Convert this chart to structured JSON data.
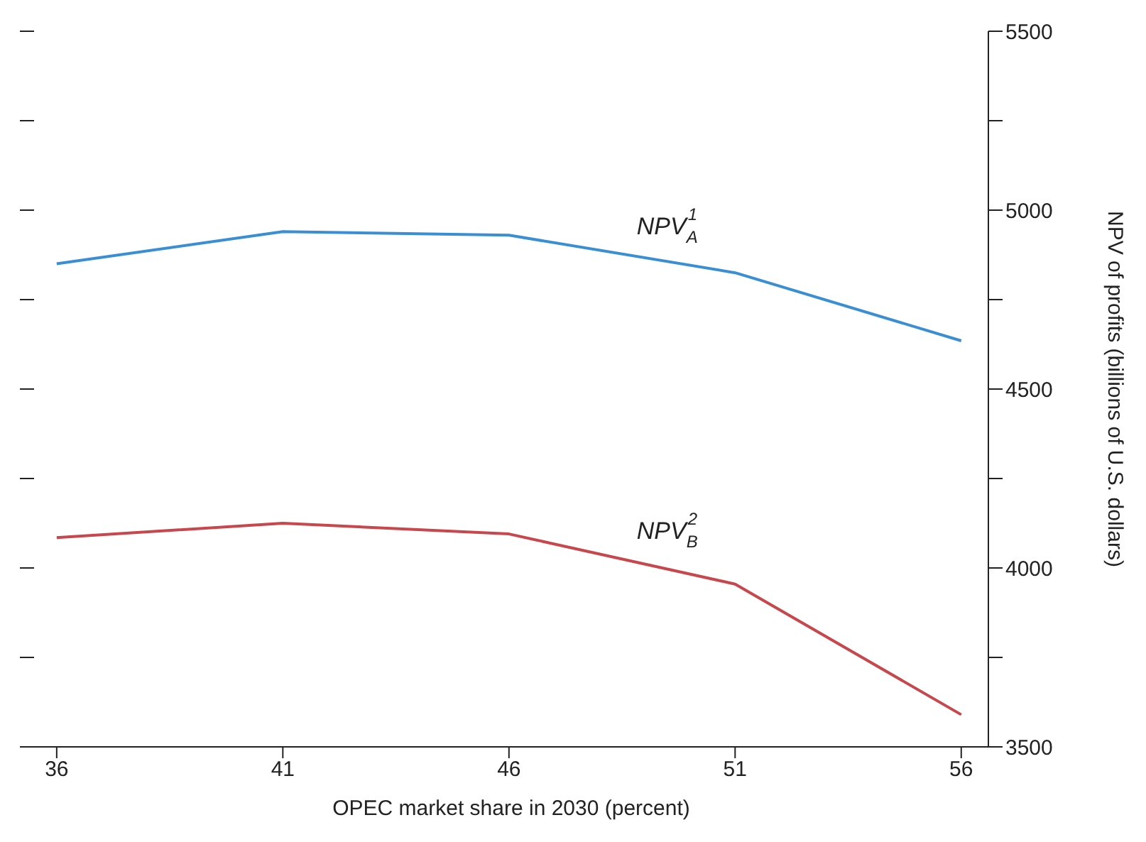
{
  "chart_data": {
    "type": "line",
    "xlabel": "OPEC market share in 2030 (percent)",
    "ylabel": "NPV of profits (billions of U.S. dollars)",
    "x": [
      36,
      41,
      46,
      51,
      56
    ],
    "series": [
      {
        "color": "#3a8fd4",
        "values": [
          4850,
          4940,
          4930,
          4825,
          4635
        ]
      },
      {
        "color": "#c8474d",
        "values": [
          4085,
          4125,
          4095,
          3955,
          3590
        ]
      }
    ],
    "xlim": [
      35.5,
      56.6
    ],
    "xticks": [
      36,
      41,
      46,
      51,
      56
    ],
    "ylim": [
      3500,
      5500
    ],
    "yticks": [
      3500,
      {
        "value": 3750,
        "label": null
      },
      4000,
      {
        "value": 4250,
        "label": null
      },
      4500,
      {
        "value": 4750,
        "label": null
      },
      5000,
      {
        "value": 5250,
        "label": null
      },
      5500
    ],
    "annotations": [
      "NPV$_{A}$$^{1}$",
      "NPV$_{B}$$^{2}$"
    ],
    "grid": false,
    "legend": false,
    "marker": "none",
    "line_style": "solid"
  }
}
